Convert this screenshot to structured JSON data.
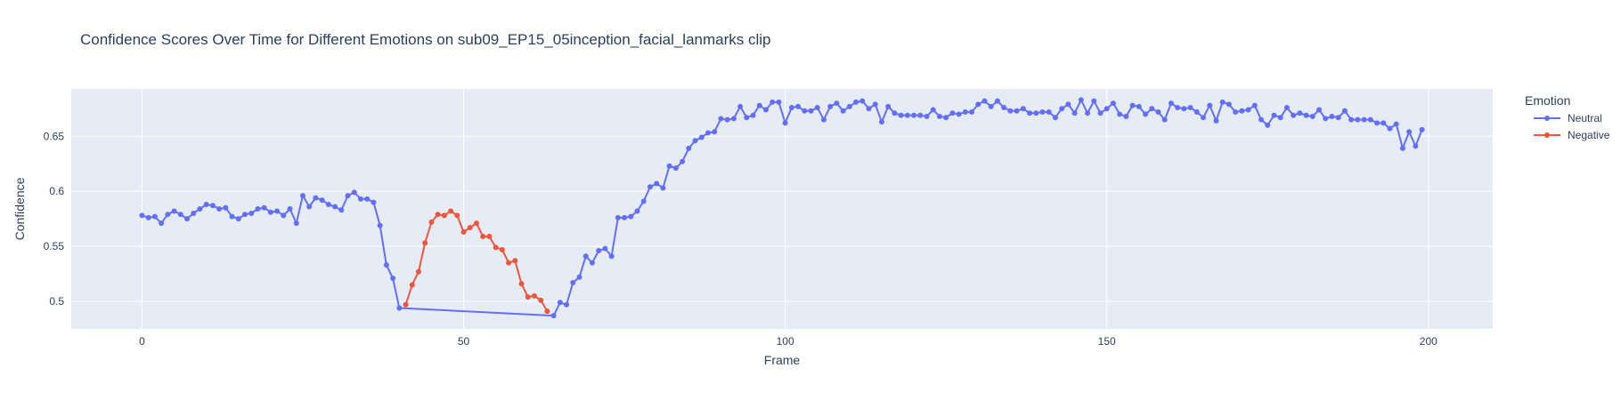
{
  "chart_data": {
    "type": "line",
    "title": "Confidence Scores Over Time for Different Emotions on sub09_EP15_05inception_facial_lanmarks clip",
    "xlabel": "Frame",
    "ylabel": "Confidence",
    "xlim": [
      -11,
      210
    ],
    "ylim": [
      0.475,
      0.693
    ],
    "x_ticks": [
      0,
      50,
      100,
      150,
      200
    ],
    "x_tick_labels": [
      "0",
      "50",
      "100",
      "150",
      "200"
    ],
    "y_ticks": [
      0.5,
      0.55,
      0.6,
      0.65
    ],
    "y_tick_labels": [
      "0.5",
      "0.55",
      "0.6",
      "0.65"
    ],
    "grid": true,
    "legend": {
      "title": "Emotion",
      "placement": "right"
    },
    "colors": {
      "plot_bg": "#e5ecf6",
      "grid": "#ffffff"
    },
    "series": [
      {
        "name": "Neutral",
        "color": "#636efa",
        "x": [
          0,
          1,
          2,
          3,
          4,
          5,
          6,
          7,
          8,
          9,
          10,
          11,
          12,
          13,
          14,
          15,
          16,
          17,
          18,
          19,
          20,
          21,
          22,
          23,
          24,
          25,
          26,
          27,
          28,
          29,
          30,
          31,
          32,
          33,
          34,
          35,
          36,
          37,
          38,
          39,
          40,
          64,
          65,
          66,
          67,
          68,
          69,
          70,
          71,
          72,
          73,
          74,
          75,
          76,
          77,
          78,
          79,
          80,
          81,
          82,
          83,
          84,
          85,
          86,
          87,
          88,
          89,
          90,
          91,
          92,
          93,
          94,
          95,
          96,
          97,
          98,
          99,
          100,
          101,
          102,
          103,
          104,
          105,
          106,
          107,
          108,
          109,
          110,
          111,
          112,
          113,
          114,
          115,
          116,
          117,
          118,
          119,
          120,
          121,
          122,
          123,
          124,
          125,
          126,
          127,
          128,
          129,
          130,
          131,
          132,
          133,
          134,
          135,
          136,
          137,
          138,
          139,
          140,
          141,
          142,
          143,
          144,
          145,
          146,
          147,
          148,
          149,
          150,
          151,
          152,
          153,
          154,
          155,
          156,
          157,
          158,
          159,
          160,
          161,
          162,
          163,
          164,
          165,
          166,
          167,
          168,
          169,
          170,
          171,
          172,
          173,
          174,
          175,
          176,
          177,
          178,
          179,
          180,
          181,
          182,
          183,
          184,
          185,
          186,
          187,
          188,
          189,
          190,
          191,
          192,
          193,
          194,
          195,
          196,
          197,
          198,
          199
        ],
        "y": [
          0.578,
          0.576,
          0.577,
          0.571,
          0.579,
          0.582,
          0.579,
          0.575,
          0.58,
          0.584,
          0.588,
          0.587,
          0.584,
          0.585,
          0.577,
          0.575,
          0.579,
          0.58,
          0.584,
          0.585,
          0.581,
          0.582,
          0.578,
          0.584,
          0.571,
          0.596,
          0.586,
          0.594,
          0.592,
          0.588,
          0.586,
          0.583,
          0.596,
          0.599,
          0.593,
          0.593,
          0.59,
          0.569,
          0.533,
          0.521,
          0.494,
          0.487,
          0.499,
          0.497,
          0.517,
          0.522,
          0.541,
          0.535,
          0.546,
          0.548,
          0.541,
          0.576,
          0.576,
          0.577,
          0.582,
          0.591,
          0.604,
          0.607,
          0.603,
          0.623,
          0.621,
          0.627,
          0.639,
          0.646,
          0.649,
          0.653,
          0.654,
          0.666,
          0.665,
          0.666,
          0.677,
          0.667,
          0.669,
          0.678,
          0.674,
          0.681,
          0.681,
          0.662,
          0.676,
          0.677,
          0.673,
          0.673,
          0.676,
          0.665,
          0.677,
          0.68,
          0.673,
          0.677,
          0.681,
          0.682,
          0.675,
          0.679,
          0.663,
          0.677,
          0.671,
          0.669,
          0.669,
          0.669,
          0.669,
          0.668,
          0.674,
          0.668,
          0.667,
          0.671,
          0.67,
          0.672,
          0.672,
          0.679,
          0.682,
          0.677,
          0.682,
          0.676,
          0.673,
          0.673,
          0.675,
          0.671,
          0.671,
          0.672,
          0.672,
          0.667,
          0.675,
          0.679,
          0.671,
          0.683,
          0.671,
          0.682,
          0.671,
          0.675,
          0.68,
          0.67,
          0.668,
          0.678,
          0.677,
          0.67,
          0.675,
          0.672,
          0.665,
          0.68,
          0.676,
          0.675,
          0.676,
          0.672,
          0.667,
          0.678,
          0.664,
          0.681,
          0.679,
          0.672,
          0.673,
          0.674,
          0.678,
          0.665,
          0.66,
          0.669,
          0.667,
          0.676,
          0.669,
          0.671,
          0.669,
          0.668,
          0.674,
          0.666,
          0.668,
          0.667,
          0.673,
          0.665,
          0.665,
          0.665,
          0.665,
          0.662,
          0.662,
          0.657,
          0.661,
          0.639,
          0.654,
          0.641,
          0.656
        ]
      },
      {
        "name": "Negative",
        "color": "#ef553b",
        "x": [
          41,
          42,
          43,
          44,
          45,
          46,
          47,
          48,
          49,
          50,
          51,
          52,
          53,
          54,
          55,
          56,
          57,
          58,
          59,
          60,
          61,
          62,
          63
        ],
        "y": [
          0.497,
          0.515,
          0.527,
          0.553,
          0.572,
          0.579,
          0.578,
          0.582,
          0.578,
          0.563,
          0.567,
          0.571,
          0.559,
          0.559,
          0.549,
          0.547,
          0.535,
          0.537,
          0.516,
          0.504,
          0.505,
          0.501,
          0.491
        ]
      }
    ]
  }
}
